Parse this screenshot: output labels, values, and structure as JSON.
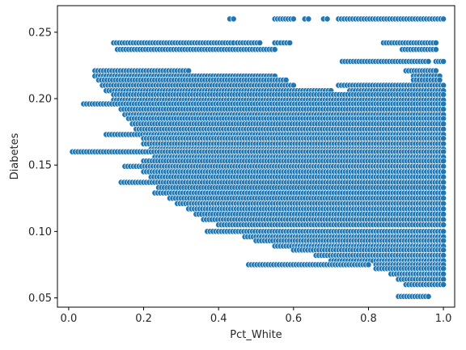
{
  "chart_data": {
    "type": "scatter",
    "title": "",
    "xlabel": "Pct_White",
    "ylabel": "Diabetes",
    "xlim": [
      -0.03,
      1.03
    ],
    "ylim": [
      0.043,
      0.27
    ],
    "xticks": [
      0.0,
      0.2,
      0.4,
      0.6,
      0.8,
      1.0
    ],
    "xtick_labels": [
      "0.0",
      "0.2",
      "0.4",
      "0.6",
      "0.8",
      "1.0"
    ],
    "yticks": [
      0.05,
      0.1,
      0.15,
      0.2,
      0.25
    ],
    "ytick_labels": [
      "0.05",
      "0.10",
      "0.15",
      "0.20",
      "0.25"
    ],
    "grid": false,
    "legend": "none",
    "marker_color": "#1f77b4",
    "marker_edge_color": "#ffffff",
    "marker_shape": "circle",
    "series": [
      {
        "bands": [
          {
            "y": 0.26,
            "x_ranges": [
              [
                0.43,
                0.44
              ],
              [
                0.55,
                0.6
              ],
              [
                0.63,
                0.64
              ],
              [
                0.68,
                0.69
              ],
              [
                0.72,
                1.0
              ]
            ]
          },
          {
            "y": 0.242,
            "x_ranges": [
              [
                0.12,
                0.44
              ],
              [
                0.45,
                0.51
              ],
              [
                0.55,
                0.59
              ],
              [
                0.84,
                0.98
              ]
            ]
          },
          {
            "y": 0.237,
            "x_ranges": [
              [
                0.13,
                0.55
              ],
              [
                0.89,
                0.98
              ]
            ]
          },
          {
            "y": 0.228,
            "x_ranges": [
              [
                0.73,
                0.96
              ],
              [
                0.98,
                1.0
              ]
            ]
          },
          {
            "y": 0.221,
            "x_ranges": [
              [
                0.07,
                0.32
              ],
              [
                0.9,
                0.98
              ]
            ]
          },
          {
            "y": 0.217,
            "x_ranges": [
              [
                0.07,
                0.55
              ],
              [
                0.92,
                0.99
              ]
            ]
          },
          {
            "y": 0.214,
            "x_ranges": [
              [
                0.08,
                0.58
              ],
              [
                0.92,
                0.99
              ]
            ]
          },
          {
            "y": 0.21,
            "x_ranges": [
              [
                0.09,
                0.6
              ],
              [
                0.72,
                1.0
              ]
            ]
          },
          {
            "y": 0.206,
            "x_ranges": [
              [
                0.1,
                0.7
              ],
              [
                0.75,
                1.0
              ]
            ]
          },
          {
            "y": 0.203,
            "x_ranges": [
              [
                0.12,
                1.0
              ]
            ]
          },
          {
            "y": 0.199,
            "x_ranges": [
              [
                0.12,
                1.0
              ]
            ]
          },
          {
            "y": 0.196,
            "x_ranges": [
              [
                0.04,
                1.0
              ]
            ]
          },
          {
            "y": 0.192,
            "x_ranges": [
              [
                0.14,
                1.0
              ]
            ]
          },
          {
            "y": 0.188,
            "x_ranges": [
              [
                0.15,
                1.0
              ]
            ]
          },
          {
            "y": 0.185,
            "x_ranges": [
              [
                0.16,
                1.0
              ]
            ]
          },
          {
            "y": 0.181,
            "x_ranges": [
              [
                0.17,
                1.0
              ]
            ]
          },
          {
            "y": 0.177,
            "x_ranges": [
              [
                0.18,
                1.0
              ]
            ]
          },
          {
            "y": 0.173,
            "x_ranges": [
              [
                0.1,
                1.0
              ]
            ]
          },
          {
            "y": 0.17,
            "x_ranges": [
              [
                0.2,
                1.0
              ]
            ]
          },
          {
            "y": 0.166,
            "x_ranges": [
              [
                0.2,
                1.0
              ]
            ]
          },
          {
            "y": 0.162,
            "x_ranges": [
              [
                0.22,
                1.0
              ]
            ]
          },
          {
            "y": 0.16,
            "x_ranges": [
              [
                0.01,
                1.0
              ]
            ]
          },
          {
            "y": 0.156,
            "x_ranges": [
              [
                0.23,
                1.0
              ]
            ]
          },
          {
            "y": 0.153,
            "x_ranges": [
              [
                0.2,
                1.0
              ]
            ]
          },
          {
            "y": 0.149,
            "x_ranges": [
              [
                0.15,
                1.0
              ]
            ]
          },
          {
            "y": 0.145,
            "x_ranges": [
              [
                0.2,
                1.0
              ]
            ]
          },
          {
            "y": 0.141,
            "x_ranges": [
              [
                0.22,
                1.0
              ]
            ]
          },
          {
            "y": 0.137,
            "x_ranges": [
              [
                0.14,
                1.0
              ]
            ]
          },
          {
            "y": 0.133,
            "x_ranges": [
              [
                0.24,
                1.0
              ]
            ]
          },
          {
            "y": 0.129,
            "x_ranges": [
              [
                0.23,
                1.0
              ]
            ]
          },
          {
            "y": 0.125,
            "x_ranges": [
              [
                0.27,
                1.0
              ]
            ]
          },
          {
            "y": 0.121,
            "x_ranges": [
              [
                0.29,
                1.0
              ]
            ]
          },
          {
            "y": 0.117,
            "x_ranges": [
              [
                0.32,
                1.0
              ]
            ]
          },
          {
            "y": 0.113,
            "x_ranges": [
              [
                0.34,
                1.0
              ]
            ]
          },
          {
            "y": 0.109,
            "x_ranges": [
              [
                0.36,
                1.0
              ]
            ]
          },
          {
            "y": 0.105,
            "x_ranges": [
              [
                0.4,
                1.0
              ]
            ]
          },
          {
            "y": 0.1,
            "x_ranges": [
              [
                0.37,
                1.0
              ]
            ]
          },
          {
            "y": 0.096,
            "x_ranges": [
              [
                0.47,
                1.0
              ]
            ]
          },
          {
            "y": 0.093,
            "x_ranges": [
              [
                0.5,
                1.0
              ]
            ]
          },
          {
            "y": 0.089,
            "x_ranges": [
              [
                0.55,
                1.0
              ]
            ]
          },
          {
            "y": 0.086,
            "x_ranges": [
              [
                0.6,
                1.0
              ]
            ]
          },
          {
            "y": 0.082,
            "x_ranges": [
              [
                0.66,
                1.0
              ]
            ]
          },
          {
            "y": 0.078,
            "x_ranges": [
              [
                0.7,
                1.0
              ]
            ]
          },
          {
            "y": 0.075,
            "x_ranges": [
              [
                0.48,
                0.8
              ],
              [
                0.82,
                1.0
              ]
            ]
          },
          {
            "y": 0.072,
            "x_ranges": [
              [
                0.82,
                1.0
              ]
            ]
          },
          {
            "y": 0.068,
            "x_ranges": [
              [
                0.86,
                1.0
              ]
            ]
          },
          {
            "y": 0.064,
            "x_ranges": [
              [
                0.88,
                1.0
              ]
            ]
          },
          {
            "y": 0.06,
            "x_ranges": [
              [
                0.9,
                1.0
              ]
            ]
          },
          {
            "y": 0.051,
            "x_ranges": [
              [
                0.88,
                0.96
              ]
            ]
          }
        ]
      }
    ]
  }
}
